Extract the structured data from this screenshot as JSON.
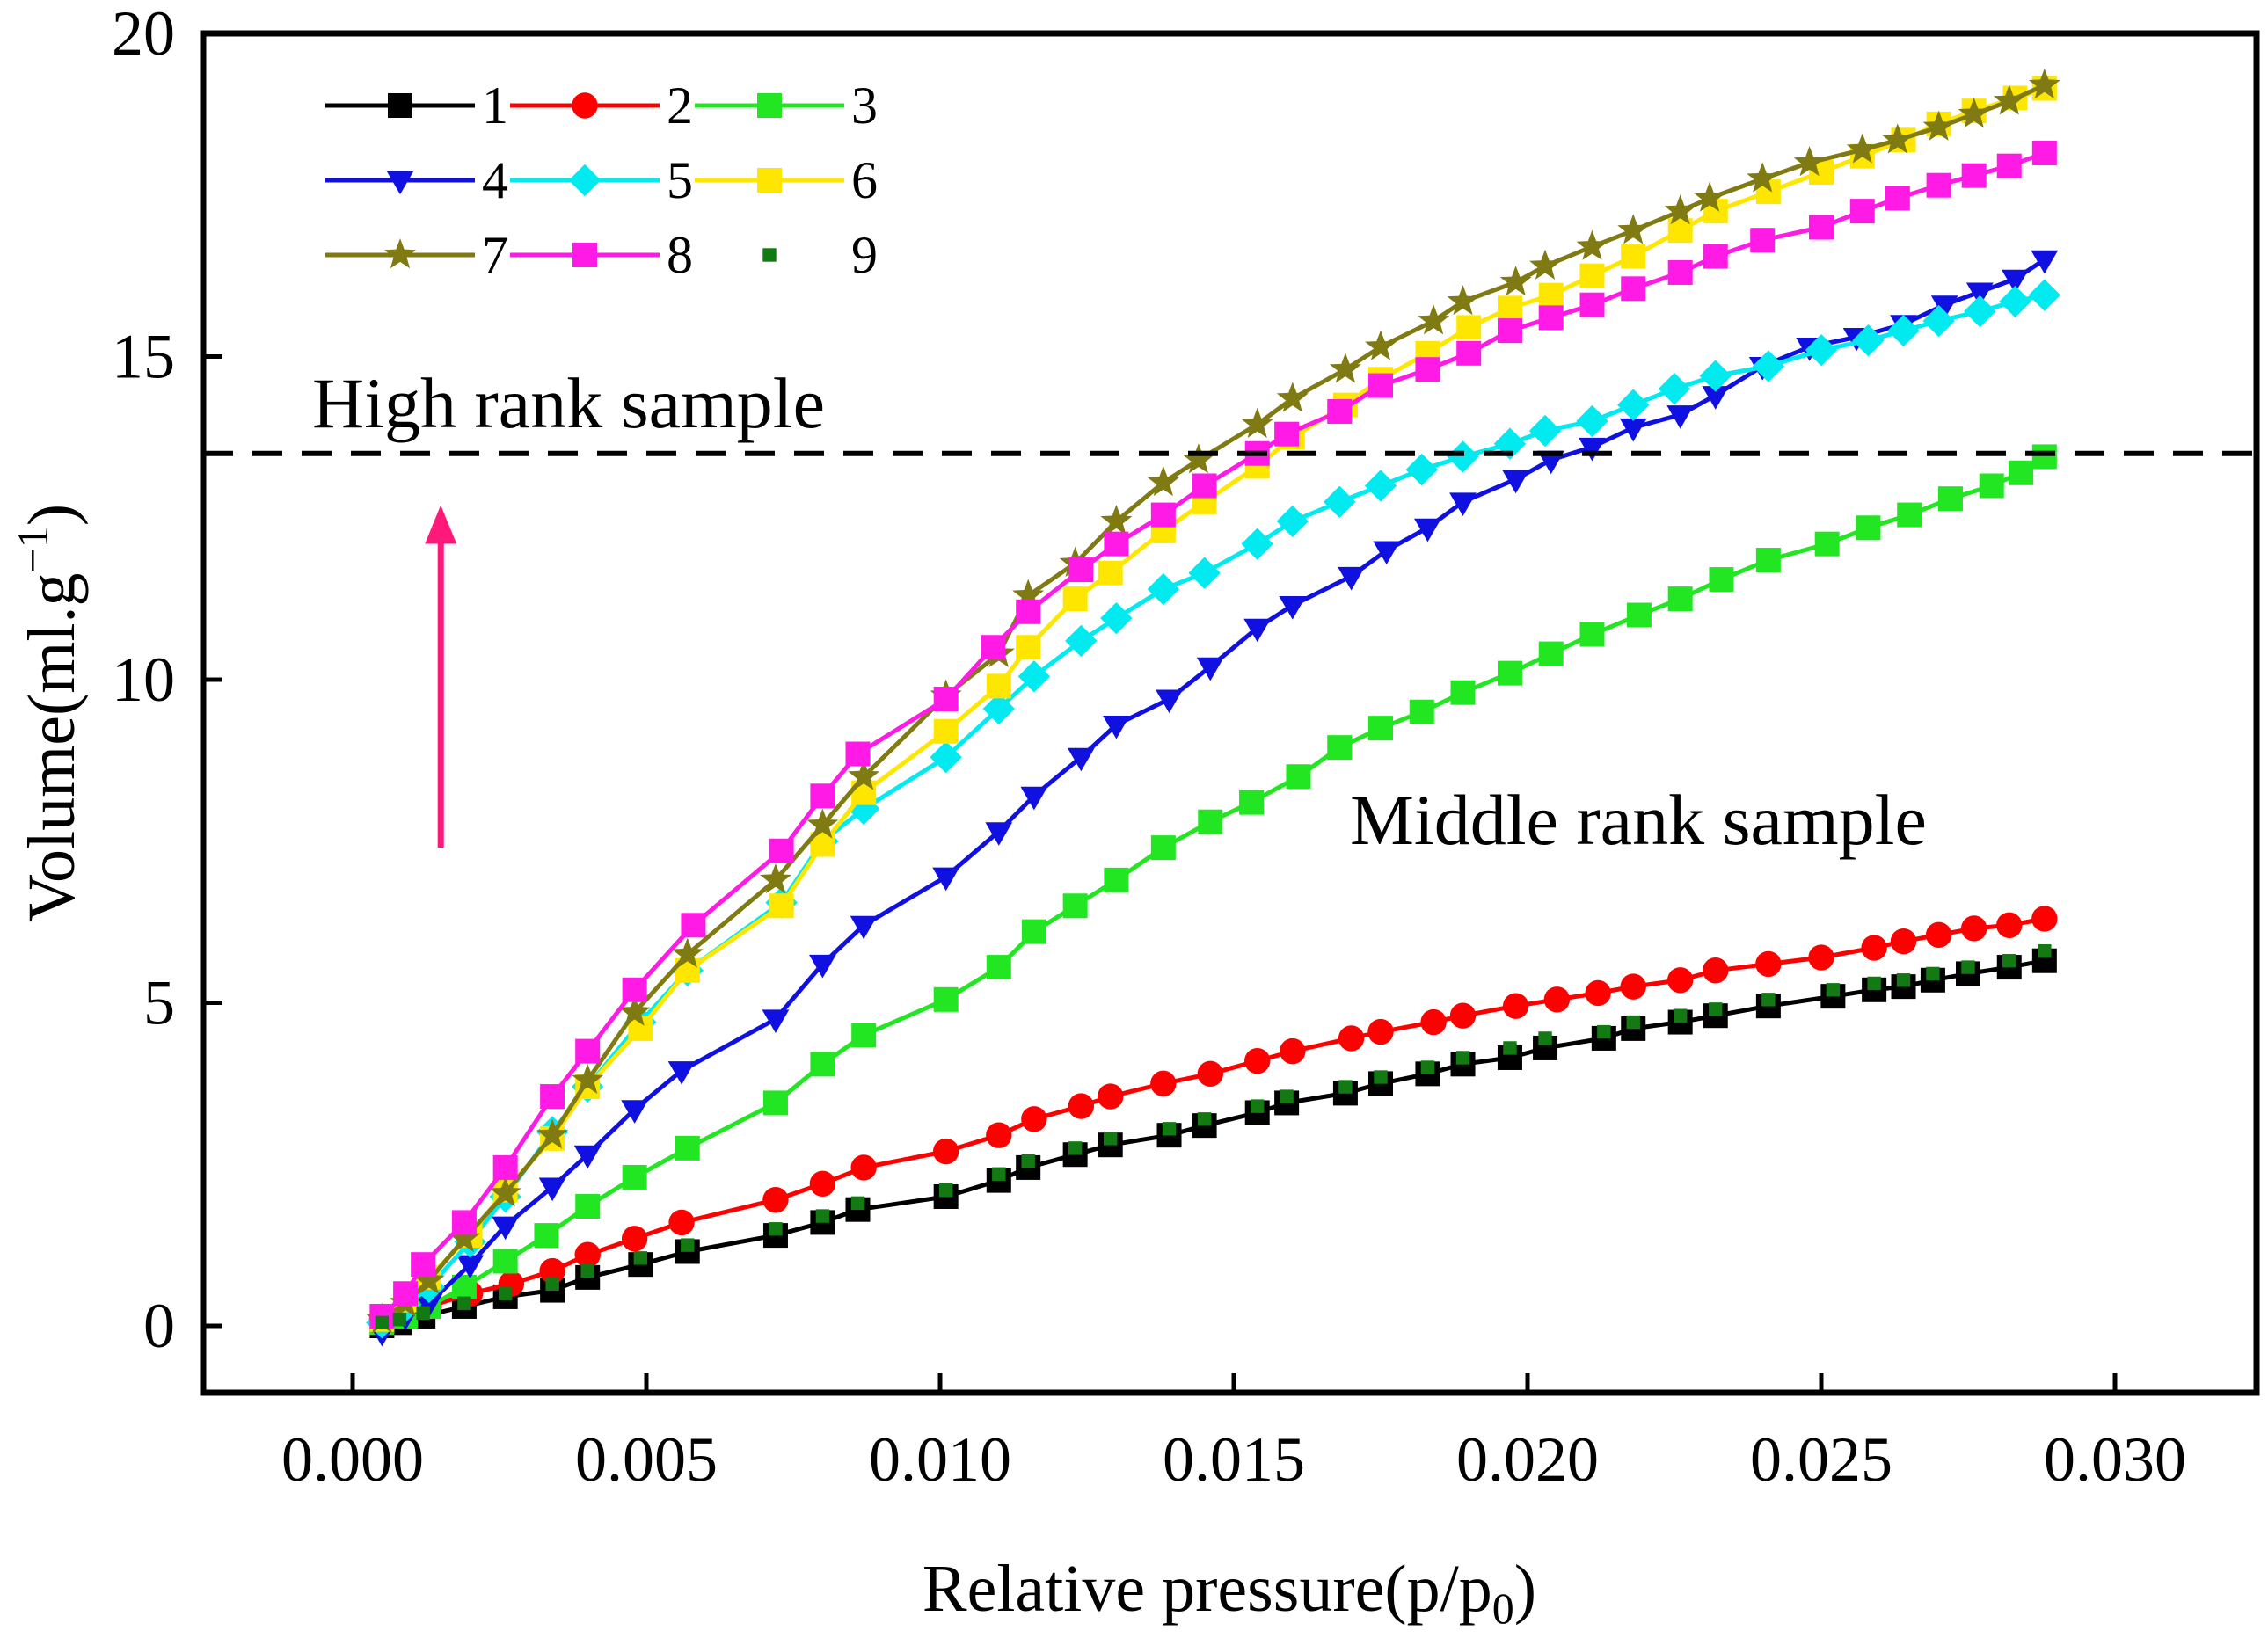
{
  "chart_data": {
    "type": "line",
    "title": "",
    "xlabel": "Relative pressure(p/p",
    "xlabel_sub": "0",
    "xlabel_end": ")",
    "ylabel": "Volume(ml.g",
    "ylabel_sup": "−1",
    "ylabel_end": ")",
    "xlim": [
      -0.0025,
      0.0325
    ],
    "ylim": [
      -1,
      20
    ],
    "xticks": [
      0.0,
      0.005,
      0.01,
      0.015,
      0.02,
      0.025,
      0.03
    ],
    "xtick_labels": [
      "0.000",
      "0.005",
      "0.010",
      "0.015",
      "0.020",
      "0.025",
      "0.030"
    ],
    "yticks": [
      0,
      5,
      10,
      15,
      20
    ],
    "ytick_labels": [
      "0",
      "5",
      "10",
      "15",
      "20"
    ],
    "grid": false,
    "legend_position": "top-left",
    "annotations": {
      "high_label": "High rank sample",
      "middle_label": "Middle rank sample",
      "threshold_y": 13.5,
      "arrow": {
        "x": 0.0015,
        "y_from": 7.4,
        "y_to": 12.7,
        "color": "#ff1a7a"
      }
    },
    "series": [
      {
        "name": "1",
        "color": "#000000",
        "marker": "square",
        "line": true,
        "x": [
          0.0005,
          0.0008,
          0.0012,
          0.0019,
          0.0026,
          0.0034,
          0.004,
          0.0049,
          0.0057,
          0.0072,
          0.008,
          0.0086,
          0.0101,
          0.011,
          0.0115,
          0.0123,
          0.0129,
          0.0139,
          0.0145,
          0.0154,
          0.0159,
          0.0169,
          0.0175,
          0.0183,
          0.0189,
          0.0197,
          0.0203,
          0.0213,
          0.0218,
          0.0226,
          0.0232,
          0.0241,
          0.0252,
          0.0259,
          0.0264,
          0.0269,
          0.0275,
          0.0282,
          0.0288
        ],
        "y": [
          0.0,
          0.05,
          0.15,
          0.3,
          0.45,
          0.55,
          0.75,
          0.95,
          1.15,
          1.4,
          1.6,
          1.8,
          2.0,
          2.25,
          2.45,
          2.65,
          2.8,
          2.95,
          3.1,
          3.3,
          3.45,
          3.6,
          3.75,
          3.9,
          4.05,
          4.15,
          4.3,
          4.45,
          4.6,
          4.7,
          4.8,
          4.95,
          5.1,
          5.2,
          5.25,
          5.35,
          5.45,
          5.55,
          5.65
        ]
      },
      {
        "name": "2",
        "color": "#ff0000",
        "marker": "circle",
        "line": true,
        "x": [
          0.0005,
          0.0009,
          0.0013,
          0.002,
          0.0027,
          0.0034,
          0.004,
          0.0048,
          0.0056,
          0.0072,
          0.008,
          0.0087,
          0.0101,
          0.011,
          0.0116,
          0.0124,
          0.0129,
          0.0138,
          0.0146,
          0.0154,
          0.016,
          0.017,
          0.0175,
          0.0184,
          0.0189,
          0.0198,
          0.0205,
          0.0212,
          0.0218,
          0.0226,
          0.0232,
          0.0241,
          0.025,
          0.0259,
          0.0264,
          0.027,
          0.0276,
          0.0282,
          0.0288
        ],
        "y": [
          0.1,
          0.2,
          0.3,
          0.5,
          0.65,
          0.85,
          1.1,
          1.35,
          1.6,
          1.95,
          2.2,
          2.45,
          2.7,
          2.95,
          3.2,
          3.4,
          3.55,
          3.75,
          3.9,
          4.1,
          4.25,
          4.45,
          4.55,
          4.7,
          4.8,
          4.95,
          5.05,
          5.15,
          5.25,
          5.35,
          5.5,
          5.6,
          5.7,
          5.85,
          5.95,
          6.05,
          6.15,
          6.2,
          6.3
        ]
      },
      {
        "name": "3",
        "color": "#22e622",
        "marker": "square",
        "line": true,
        "x": [
          0.0005,
          0.0009,
          0.0013,
          0.0019,
          0.0026,
          0.0033,
          0.004,
          0.0048,
          0.0057,
          0.0072,
          0.008,
          0.0087,
          0.0101,
          0.011,
          0.0116,
          0.0123,
          0.013,
          0.0138,
          0.0146,
          0.0153,
          0.0161,
          0.0168,
          0.0175,
          0.0182,
          0.0189,
          0.0197,
          0.0204,
          0.0211,
          0.0219,
          0.0226,
          0.0233,
          0.0241,
          0.0251,
          0.0258,
          0.0265,
          0.0272,
          0.0279,
          0.0284,
          0.0288
        ],
        "y": [
          0.05,
          0.15,
          0.3,
          0.6,
          1.0,
          1.4,
          1.85,
          2.3,
          2.75,
          3.45,
          4.05,
          4.5,
          5.05,
          5.55,
          6.1,
          6.5,
          6.9,
          7.4,
          7.8,
          8.1,
          8.5,
          8.95,
          9.25,
          9.5,
          9.8,
          10.1,
          10.4,
          10.7,
          11.0,
          11.25,
          11.55,
          11.85,
          12.1,
          12.35,
          12.55,
          12.8,
          13.0,
          13.2,
          13.45
        ]
      },
      {
        "name": "4",
        "color": "#1010e0",
        "marker": "triangle-down",
        "line": true,
        "x": [
          0.0005,
          0.0009,
          0.0013,
          0.002,
          0.0026,
          0.0034,
          0.004,
          0.0048,
          0.0056,
          0.0072,
          0.008,
          0.0087,
          0.0101,
          0.011,
          0.0116,
          0.0124,
          0.013,
          0.0139,
          0.0146,
          0.0154,
          0.016,
          0.017,
          0.0176,
          0.0183,
          0.0189,
          0.0198,
          0.0204,
          0.0211,
          0.0218,
          0.0226,
          0.0232,
          0.024,
          0.0248,
          0.0256,
          0.0264,
          0.0271,
          0.0277,
          0.0283,
          0.0288
        ],
        "y": [
          -0.1,
          0.15,
          0.35,
          0.95,
          1.55,
          2.15,
          2.65,
          3.35,
          3.95,
          4.75,
          5.6,
          6.2,
          6.95,
          7.65,
          8.2,
          8.8,
          9.3,
          9.7,
          10.2,
          10.8,
          11.15,
          11.6,
          12.0,
          12.35,
          12.75,
          13.1,
          13.4,
          13.6,
          13.9,
          14.1,
          14.4,
          14.85,
          15.15,
          15.3,
          15.5,
          15.8,
          16.0,
          16.2,
          16.5
        ]
      },
      {
        "name": "5",
        "color": "#00eaf0",
        "marker": "diamond",
        "line": true,
        "x": [
          0.0005,
          0.0009,
          0.0013,
          0.002,
          0.0026,
          0.0034,
          0.004,
          0.0049,
          0.0057,
          0.0073,
          0.008,
          0.0087,
          0.0101,
          0.011,
          0.0116,
          0.0124,
          0.013,
          0.0138,
          0.0145,
          0.0154,
          0.016,
          0.0168,
          0.0175,
          0.0182,
          0.0189,
          0.0197,
          0.0203,
          0.0211,
          0.0218,
          0.0225,
          0.0232,
          0.0241,
          0.025,
          0.0258,
          0.0264,
          0.027,
          0.0277,
          0.0283,
          0.0288
        ],
        "y": [
          0.05,
          0.3,
          0.6,
          1.3,
          2.0,
          3.0,
          3.7,
          4.7,
          5.5,
          6.55,
          7.5,
          8.0,
          8.8,
          9.55,
          10.05,
          10.6,
          10.95,
          11.4,
          11.65,
          12.1,
          12.45,
          12.75,
          13.0,
          13.25,
          13.45,
          13.65,
          13.85,
          14.0,
          14.25,
          14.5,
          14.7,
          14.85,
          15.1,
          15.25,
          15.4,
          15.55,
          15.7,
          15.85,
          15.95
        ]
      },
      {
        "name": "6",
        "color": "#ffe600",
        "marker": "square",
        "line": true,
        "x": [
          0.0005,
          0.0009,
          0.0013,
          0.002,
          0.0026,
          0.0034,
          0.004,
          0.0049,
          0.0057,
          0.0073,
          0.008,
          0.0087,
          0.0101,
          0.011,
          0.0115,
          0.0123,
          0.0129,
          0.0138,
          0.0145,
          0.0154,
          0.016,
          0.0169,
          0.0175,
          0.0183,
          0.019,
          0.0197,
          0.0204,
          0.0211,
          0.0218,
          0.0226,
          0.0232,
          0.0241,
          0.025,
          0.0257,
          0.0264,
          0.027,
          0.0276,
          0.0283,
          0.0288
        ],
        "y": [
          0.1,
          0.4,
          0.75,
          1.4,
          2.1,
          2.9,
          3.7,
          4.6,
          5.5,
          6.5,
          7.45,
          8.25,
          9.2,
          9.9,
          10.5,
          11.25,
          11.65,
          12.3,
          12.75,
          13.3,
          13.75,
          14.25,
          14.65,
          15.05,
          15.45,
          15.75,
          15.95,
          16.25,
          16.55,
          16.95,
          17.25,
          17.55,
          17.85,
          18.1,
          18.35,
          18.6,
          18.8,
          19.0,
          19.15
        ]
      },
      {
        "name": "7",
        "color": "#7f7a12",
        "marker": "star",
        "line": true,
        "x": [
          0.0005,
          0.0009,
          0.0013,
          0.0019,
          0.0026,
          0.0034,
          0.004,
          0.0048,
          0.0057,
          0.0072,
          0.008,
          0.0087,
          0.0101,
          0.011,
          0.0115,
          0.0123,
          0.013,
          0.0138,
          0.0144,
          0.0154,
          0.016,
          0.0169,
          0.0175,
          0.0184,
          0.0189,
          0.0198,
          0.0203,
          0.0211,
          0.0218,
          0.0226,
          0.0231,
          0.024,
          0.0248,
          0.0257,
          0.0263,
          0.027,
          0.0276,
          0.0282,
          0.0288
        ],
        "y": [
          0.1,
          0.35,
          0.7,
          1.35,
          2.05,
          2.95,
          3.8,
          4.85,
          5.75,
          6.9,
          7.75,
          8.5,
          9.75,
          10.4,
          11.3,
          11.8,
          12.45,
          13.05,
          13.4,
          13.95,
          14.35,
          14.8,
          15.15,
          15.55,
          15.85,
          16.15,
          16.4,
          16.7,
          16.95,
          17.25,
          17.45,
          17.75,
          18.0,
          18.2,
          18.35,
          18.55,
          18.75,
          18.95,
          19.2
        ]
      },
      {
        "name": "8",
        "color": "#ff1ae6",
        "marker": "square",
        "line": true,
        "x": [
          0.0005,
          0.0009,
          0.0012,
          0.0019,
          0.0026,
          0.0034,
          0.004,
          0.0048,
          0.0058,
          0.0073,
          0.008,
          0.0086,
          0.0101,
          0.0109,
          0.0115,
          0.0124,
          0.013,
          0.0138,
          0.0145,
          0.0154,
          0.0159,
          0.0168,
          0.0175,
          0.0183,
          0.019,
          0.0197,
          0.0204,
          0.0211,
          0.0218,
          0.0226,
          0.0232,
          0.024,
          0.025,
          0.0257,
          0.0263,
          0.027,
          0.0276,
          0.0282,
          0.0288
        ],
        "y": [
          0.15,
          0.5,
          0.95,
          1.6,
          2.45,
          3.55,
          4.25,
          5.2,
          6.2,
          7.35,
          8.2,
          8.85,
          9.7,
          10.5,
          11.05,
          11.7,
          12.1,
          12.55,
          13.0,
          13.5,
          13.8,
          14.15,
          14.55,
          14.8,
          15.05,
          15.4,
          15.6,
          15.8,
          16.05,
          16.3,
          16.55,
          16.8,
          17.0,
          17.25,
          17.45,
          17.65,
          17.8,
          17.95,
          18.15
        ]
      },
      {
        "name": "9",
        "color": "#137a13",
        "marker": "small-square",
        "line": false,
        "x": [
          0.0005,
          0.0008,
          0.0012,
          0.0019,
          0.0026,
          0.0034,
          0.004,
          0.0049,
          0.0057,
          0.0072,
          0.008,
          0.0086,
          0.0101,
          0.011,
          0.0115,
          0.0123,
          0.0129,
          0.0139,
          0.0145,
          0.0154,
          0.0159,
          0.0169,
          0.0175,
          0.0183,
          0.0189,
          0.0197,
          0.0203,
          0.0213,
          0.0218,
          0.0226,
          0.0232,
          0.0241,
          0.0252,
          0.0259,
          0.0264,
          0.0269,
          0.0275,
          0.0282,
          0.0288
        ],
        "y": [
          0.05,
          0.1,
          0.2,
          0.35,
          0.5,
          0.65,
          0.85,
          1.05,
          1.25,
          1.5,
          1.7,
          1.9,
          2.1,
          2.35,
          2.55,
          2.75,
          2.9,
          3.05,
          3.2,
          3.4,
          3.55,
          3.7,
          3.85,
          4.0,
          4.15,
          4.3,
          4.45,
          4.55,
          4.7,
          4.8,
          4.9,
          5.05,
          5.2,
          5.3,
          5.35,
          5.45,
          5.55,
          5.65,
          5.8
        ]
      }
    ]
  }
}
